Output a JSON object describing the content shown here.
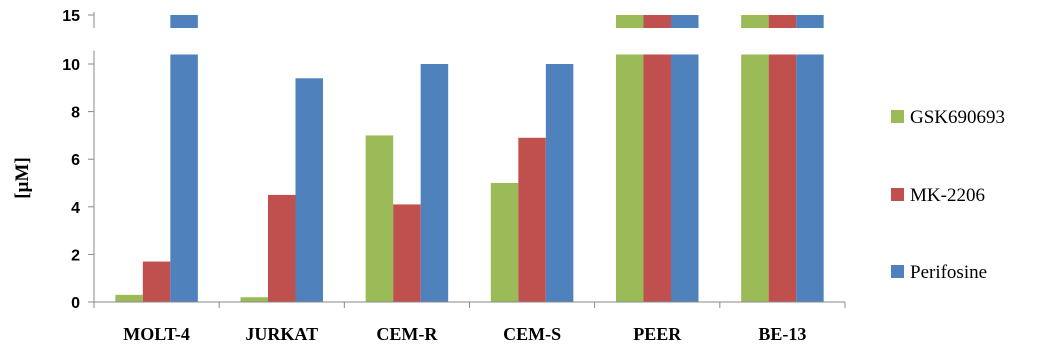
{
  "chart_data": {
    "type": "bar",
    "ylabel": "[µM]",
    "categories": [
      "MOLT-4",
      "JURKAT",
      "CEM-R",
      "CEM-S",
      "PEER",
      "BE-13"
    ],
    "series": [
      {
        "name": "GSK690693",
        "color": "#9bbb59",
        "values": [
          0.3,
          0.2,
          7.0,
          5.0,
          15,
          15
        ]
      },
      {
        "name": "MK-2206",
        "color": "#c0504d",
        "values": [
          1.7,
          4.5,
          4.1,
          6.9,
          15,
          15
        ]
      },
      {
        "name": "Perifosine",
        "color": "#4f81bd",
        "values": [
          15,
          9.4,
          10.0,
          10.0,
          15,
          15
        ]
      }
    ],
    "y_ticks": [
      {
        "value": 0,
        "label": "0"
      },
      {
        "value": 2,
        "label": "2"
      },
      {
        "value": 4,
        "label": "4"
      },
      {
        "value": 6,
        "label": "6"
      },
      {
        "value": 8,
        "label": "8"
      },
      {
        "value": 10,
        "label": "10"
      },
      {
        "value": 15,
        "label": "15"
      }
    ],
    "axis_break": {
      "from": 10.4,
      "to": 14.4
    },
    "legend_position": "right",
    "grid": false
  }
}
